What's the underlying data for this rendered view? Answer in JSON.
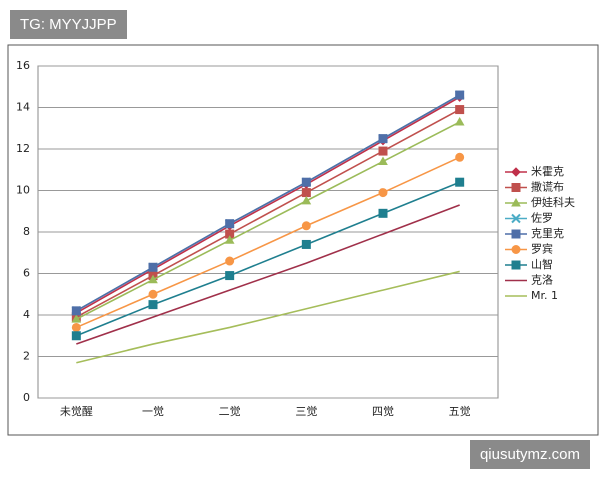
{
  "chart_data": {
    "type": "line",
    "categories": [
      "未觉醒",
      "一觉",
      "二觉",
      "三觉",
      "四觉",
      "五觉"
    ],
    "series": [
      {
        "name": "米霍克",
        "color": "#c0304a",
        "marker": "diamond",
        "values": [
          4.1,
          6.2,
          8.3,
          10.3,
          12.4,
          14.5
        ]
      },
      {
        "name": "撒谎布",
        "color": "#c0504d",
        "marker": "square",
        "values": [
          3.9,
          5.9,
          7.9,
          9.9,
          11.9,
          13.9
        ]
      },
      {
        "name": "伊娃科夫",
        "color": "#9bbb59",
        "marker": "triangle",
        "values": [
          3.8,
          5.7,
          7.6,
          9.5,
          11.4,
          13.3
        ]
      },
      {
        "name": "佐罗",
        "color": "#4bacc6",
        "marker": "cross",
        "values": [
          4.2,
          6.3,
          8.4,
          10.4,
          12.5,
          14.6
        ]
      },
      {
        "name": "克里克",
        "color": "#4f6fa8",
        "marker": "square",
        "values": [
          4.2,
          6.3,
          8.4,
          10.4,
          12.5,
          14.6
        ]
      },
      {
        "name": "罗宾",
        "color": "#f79646",
        "marker": "circle",
        "values": [
          3.4,
          5.0,
          6.6,
          8.3,
          9.9,
          11.6
        ]
      },
      {
        "name": "山智",
        "color": "#1f7f8f",
        "marker": "square",
        "values": [
          3.0,
          4.5,
          5.9,
          7.4,
          8.9,
          10.4
        ]
      },
      {
        "name": "克洛",
        "color": "#a0304a",
        "marker": "none",
        "values": [
          2.6,
          3.9,
          5.2,
          6.5,
          7.9,
          9.3
        ]
      },
      {
        "name": "Mr. 1",
        "color": "#a5bd5a",
        "marker": "none",
        "values": [
          1.7,
          2.6,
          3.4,
          4.3,
          5.2,
          6.1
        ]
      }
    ],
    "ylim": [
      0,
      16
    ],
    "yticks": [
      0,
      2,
      4,
      6,
      8,
      10,
      12,
      14,
      16
    ],
    "grid": true,
    "legend": "right"
  },
  "watermarks": [
    "TG: MYYJJPP",
    "qiusutymz.com"
  ]
}
